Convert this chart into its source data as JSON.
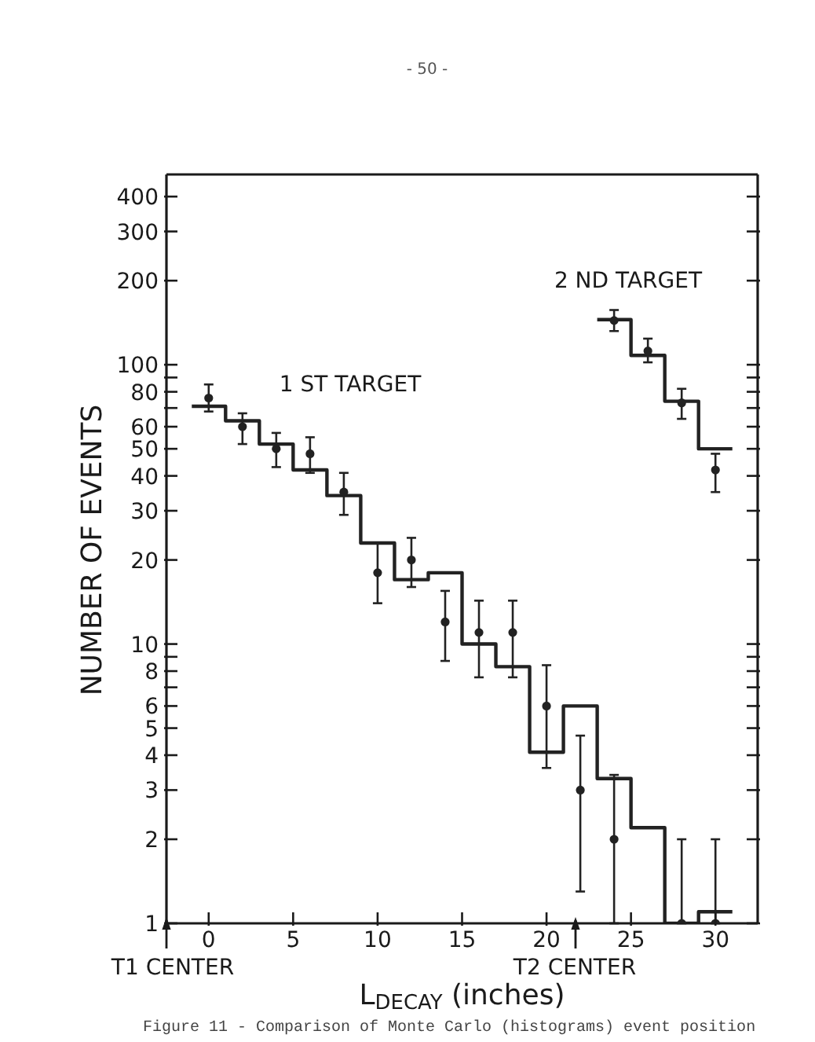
{
  "chart_data": {
    "type": "histogram",
    "xlabel": "L$_{DECAY}$ (inches)",
    "ylabel": "NUMBER OF EVENTS",
    "log": "y",
    "xlim": [
      -2.5,
      32.5
    ],
    "xticks": [
      0,
      5,
      10,
      15,
      20,
      25,
      30
    ],
    "ylim": [
      1,
      480
    ],
    "yticks": [
      1,
      2,
      3,
      4,
      5,
      6,
      {
        "value": 7,
        "label": null
      },
      8,
      {
        "value": 9,
        "label": null
      },
      10,
      20,
      30,
      40,
      50,
      60,
      {
        "value": 70,
        "label": null
      },
      80,
      {
        "value": 90,
        "label": null
      },
      100,
      200,
      300,
      400
    ],
    "series": [
      {
        "color": "#222222",
        "bins": [
          -1,
          1,
          3,
          5,
          7,
          9,
          11,
          13,
          15,
          17,
          19,
          21,
          23,
          25,
          27,
          29,
          31
        ],
        "values": [
          71,
          63,
          52,
          42,
          34,
          23,
          17,
          18,
          10,
          8.3,
          4.1,
          6,
          3.3,
          2.2,
          null,
          1.1
        ]
      },
      {
        "color": "#222222",
        "bins": [
          23,
          25,
          27,
          29,
          31
        ],
        "values": [
          145,
          108,
          74,
          50
        ]
      },
      {
        "type": "scatter",
        "color": "#222222",
        "marker": "circle",
        "x": [
          0,
          2,
          4,
          6,
          8,
          10,
          12,
          14,
          16,
          18,
          20,
          22,
          24,
          28,
          30
        ],
        "values": [
          76,
          60,
          50,
          48,
          35,
          18,
          20,
          12,
          11,
          11,
          6,
          3,
          2,
          1,
          1
        ],
        "errors": [
          [
            68,
            85
          ],
          [
            52,
            67
          ],
          [
            43,
            57
          ],
          [
            41,
            55
          ],
          [
            29,
            41
          ],
          [
            14,
            23
          ],
          [
            16,
            24
          ],
          [
            8.7,
            15.5
          ],
          [
            7.6,
            14.3
          ],
          [
            7.6,
            14.3
          ],
          [
            3.6,
            8.4
          ],
          [
            1.3,
            4.7
          ],
          [
            1,
            3.4
          ],
          [
            1,
            2
          ],
          [
            1,
            2
          ]
        ]
      },
      {
        "type": "scatter",
        "color": "#222222",
        "marker": "circle",
        "x": [
          24,
          26,
          28,
          30
        ],
        "values": [
          144,
          112,
          73,
          42
        ],
        "errors": [
          [
            132,
            157
          ],
          [
            102,
            124
          ],
          [
            64,
            82
          ],
          [
            35,
            48
          ]
        ]
      }
    ],
    "annotations": [
      "- 50 -",
      "1 ST TARGET",
      "2 ND TARGET",
      "T1 CENTER",
      "T2 CENTER",
      "Figure 11 - Comparison of Monte Carlo (histograms) event position"
    ]
  }
}
